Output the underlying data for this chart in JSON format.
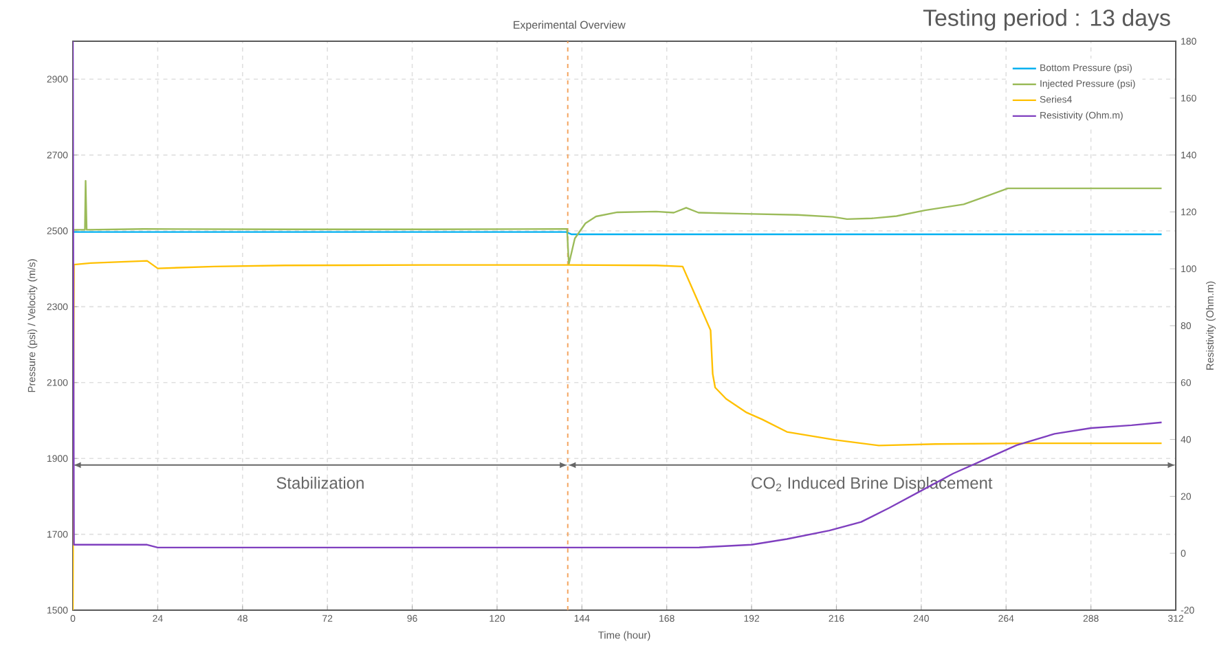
{
  "chart_data": {
    "type": "line",
    "title": "Experimental Overview",
    "subtitle": "Testing period : 13 days",
    "xlabel": "Time (hour)",
    "ylabel": "Pressure (psi) / Velocity (m/s)",
    "y2label": "Resistivity (Ohm.m)",
    "xlim": [
      0,
      312
    ],
    "xticks": [
      0,
      24,
      48,
      72,
      96,
      120,
      144,
      168,
      192,
      216,
      240,
      264,
      288,
      312
    ],
    "ylim": [
      1500,
      3000
    ],
    "yticks": [
      1500,
      1700,
      1900,
      2100,
      2300,
      2500,
      2700,
      2900
    ],
    "y2lim": [
      -20,
      180
    ],
    "y2ticks": [
      -20,
      0,
      20,
      40,
      60,
      80,
      100,
      120,
      140,
      160,
      180
    ],
    "grid": true,
    "legend": "top right",
    "series": [
      {
        "name": "Bottom Pressure (psi)",
        "color": "#00b0f0",
        "x": [
          0,
          20,
          40,
          60,
          80,
          100,
          120,
          139.5,
          141,
          160,
          180,
          200,
          220,
          240,
          260,
          280,
          308
        ],
        "values": [
          2497,
          2497,
          2497,
          2497,
          2497,
          2497,
          2497,
          2497,
          2491,
          2491,
          2491,
          2491,
          2491,
          2491,
          2491,
          2491,
          2491
        ]
      },
      {
        "name": "Injected Pressure (psi)",
        "color": "#9bbb59",
        "x": [
          0,
          3.4,
          3.6,
          3.9,
          20,
          60,
          100,
          139.8,
          140.3,
          142,
          145,
          148,
          154,
          165,
          170,
          173.5,
          177,
          190,
          205,
          215,
          219,
          226,
          233,
          241,
          252,
          258,
          264.5,
          280,
          308
        ],
        "values": [
          2503,
          2503,
          2632,
          2503,
          2505,
          2504,
          2504,
          2505,
          2412,
          2480,
          2520,
          2538,
          2549,
          2551,
          2548,
          2561,
          2548,
          2545,
          2542,
          2537,
          2531,
          2533,
          2539,
          2554,
          2570,
          2590,
          2612,
          2612,
          2612
        ]
      },
      {
        "name": "Series4",
        "color": "#ffc000",
        "x": [
          0,
          0.3,
          5,
          21,
          24,
          40,
          60,
          100,
          140,
          165,
          172.5,
          180.4,
          181,
          181.7,
          184.8,
          190.6,
          195,
          202,
          215.5,
          228,
          244,
          270,
          308
        ],
        "values": [
          1500,
          2411,
          2415,
          2421,
          2401,
          2406,
          2409,
          2410,
          2410,
          2409,
          2406,
          2238,
          2123,
          2087,
          2057,
          2021,
          2003,
          1970,
          1949,
          1934,
          1938,
          1940,
          1940
        ]
      },
      {
        "name": "Resistivity (Ohm.m)",
        "color": "#7f3fbf",
        "axis": "y2",
        "x": [
          0,
          0.3,
          4,
          21,
          24,
          60,
          100,
          140,
          176.6,
          192,
          202,
          214,
          223,
          231,
          240,
          249,
          258,
          267,
          277.7,
          288,
          299.5,
          308
        ],
        "values": [
          180,
          3,
          3,
          3,
          2,
          2,
          2,
          2,
          2,
          3,
          5,
          8,
          11,
          16,
          22,
          28,
          33,
          38,
          42,
          44,
          45,
          46
        ]
      }
    ],
    "ref_lines": [
      {
        "axis": "x",
        "value": 140,
        "color": "#f4a460",
        "line_style": "dashed"
      }
    ],
    "annotations": [
      "Stabilization",
      "CO$_{2}$ Induced Brine Displacement"
    ]
  }
}
